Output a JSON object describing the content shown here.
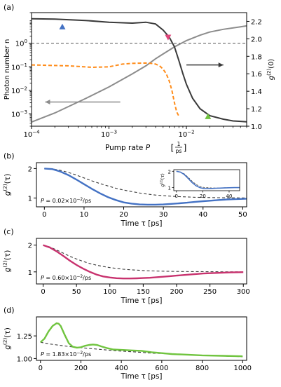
{
  "chart_data": [
    {
      "panel": "(a)",
      "type": "line",
      "xlabel_main": "Pump rate",
      "xlabel_sym": "P",
      "xlabel_unit_num": "1",
      "xlabel_unit_den": "ps",
      "ylabel_left": "Photon number n",
      "ylabel_right_sym": "g",
      "ylabel_right_sup": "(2)",
      "ylabel_right_arg": "(0)",
      "x_scale": "log",
      "y_scale_left": "log",
      "xlim": [
        0.0001,
        0.06
      ],
      "ylim_left": [
        0.0003,
        20
      ],
      "ylim_right": [
        1.0,
        2.3
      ],
      "x_ticks": [
        {
          "v": 0.0001,
          "base": "10",
          "exp": "−4"
        },
        {
          "v": 0.001,
          "base": "10",
          "exp": "−3"
        },
        {
          "v": 0.01,
          "base": "10",
          "exp": "−2"
        }
      ],
      "y_ticks_left": [
        {
          "v": 0.001,
          "base": "10",
          "exp": "−3"
        },
        {
          "v": 0.01,
          "base": "10",
          "exp": "−2"
        },
        {
          "v": 0.1,
          "base": "10",
          "exp": "−1"
        },
        {
          "v": 1,
          "base": "10",
          "exp": "0"
        }
      ],
      "y_ticks_right": [
        "1.0",
        "1.2",
        "1.4",
        "1.6",
        "1.8",
        "2.0",
        "2.2"
      ],
      "hline_left": 1.0,
      "series": [
        {
          "axis": "left",
          "color": "#8c8c8c",
          "style": "solid",
          "x": [
            0.0001,
            0.0002,
            0.0005,
            0.001,
            0.002,
            0.003,
            0.004,
            0.005,
            0.007,
            0.01,
            0.015,
            0.02,
            0.03,
            0.05,
            0.06
          ],
          "y": [
            0.00045,
            0.0011,
            0.0045,
            0.014,
            0.05,
            0.11,
            0.22,
            0.35,
            0.7,
            1.3,
            2.2,
            3.0,
            3.9,
            5.0,
            5.5
          ]
        },
        {
          "axis": "right",
          "color": "#3a3a3a",
          "style": "solid",
          "x": [
            0.0001,
            0.0002,
            0.0005,
            0.001,
            0.002,
            0.003,
            0.004,
            0.005,
            0.006,
            0.007,
            0.008,
            0.009,
            0.01,
            0.012,
            0.015,
            0.02,
            0.03,
            0.04,
            0.05,
            0.06
          ],
          "y": [
            2.23,
            2.225,
            2.21,
            2.19,
            2.18,
            2.19,
            2.17,
            2.1,
            2.02,
            1.91,
            1.75,
            1.6,
            1.48,
            1.32,
            1.2,
            1.12,
            1.08,
            1.06,
            1.055,
            1.05
          ]
        },
        {
          "axis": "left",
          "color": "#ff8c1a",
          "style": "dashed",
          "x": [
            0.0001,
            0.0003,
            0.0006,
            0.001,
            0.0015,
            0.002,
            0.0025,
            0.003,
            0.0035,
            0.004,
            0.0045,
            0.005,
            0.0055,
            0.006,
            0.0065,
            0.007,
            0.0075,
            0.008
          ],
          "y": [
            0.12,
            0.11,
            0.095,
            0.1,
            0.13,
            0.14,
            0.143,
            0.145,
            0.14,
            0.13,
            0.11,
            0.08,
            0.05,
            0.025,
            0.01,
            0.003,
            0.0012,
            0.0008
          ]
        }
      ],
      "markers": [
        {
          "shape": "up",
          "color": "#4472c4",
          "x": 0.00025,
          "axis": "left",
          "y": 5.0
        },
        {
          "shape": "down",
          "color": "#e0457b",
          "x": 0.0058,
          "axis": "left",
          "y": 1.8
        },
        {
          "shape": "up",
          "color": "#70c43f",
          "x": 0.019,
          "axis": "right",
          "y": 1.11
        }
      ],
      "arrows": [
        {
          "dir": "left",
          "x_from": 0.0014,
          "x_to": 0.00015,
          "y": 0.0032,
          "color": "#8c8c8c"
        },
        {
          "dir": "right",
          "x_from": 0.01,
          "x_to": 0.03,
          "y": 0.12,
          "color": "#3a3a3a"
        }
      ]
    },
    {
      "panel": "(b)",
      "type": "line",
      "xlabel": "Time τ [ps]",
      "ylabel_sym": "g",
      "ylabel_sup": "(2)",
      "ylabel_arg": "(τ)",
      "xlim": [
        -2,
        51
      ],
      "ylim": [
        0.7,
        2.2
      ],
      "x_ticks": [
        "0",
        "10",
        "20",
        "30",
        "40",
        "50"
      ],
      "y_ticks": [
        "1",
        "2"
      ],
      "annotation": "P = 0.02×10−2/ps",
      "series": [
        {
          "color": "#4472c4",
          "style": "solid",
          "x": [
            0,
            2,
            4,
            6,
            8,
            10,
            12,
            14,
            16,
            18,
            20,
            22,
            24,
            26,
            28,
            30,
            32,
            34,
            36,
            38,
            40,
            42,
            44,
            46,
            48,
            50,
            51
          ],
          "y": [
            2.0,
            1.98,
            1.9,
            1.78,
            1.63,
            1.47,
            1.31,
            1.16,
            1.03,
            0.93,
            0.85,
            0.81,
            0.78,
            0.775,
            0.775,
            0.78,
            0.8,
            0.82,
            0.84,
            0.87,
            0.89,
            0.91,
            0.93,
            0.95,
            0.96,
            0.97,
            0.975
          ]
        },
        {
          "color": "#3a3a3a",
          "style": "dashed",
          "x": [
            0,
            2,
            4,
            6,
            8,
            10,
            12,
            14,
            16,
            18,
            20,
            22,
            24,
            26,
            28,
            30,
            32,
            34,
            36,
            38,
            40,
            42,
            44,
            46,
            48,
            50,
            51
          ],
          "y": [
            2.0,
            1.99,
            1.94,
            1.87,
            1.78,
            1.68,
            1.58,
            1.49,
            1.41,
            1.33,
            1.27,
            1.22,
            1.17,
            1.13,
            1.1,
            1.08,
            1.06,
            1.045,
            1.035,
            1.025,
            1.02,
            1.015,
            1.01,
            1.008,
            1.005,
            1.003,
            1.002
          ]
        }
      ],
      "inset": {
        "xlim": [
          -2,
          48
        ],
        "ylim": [
          0.8,
          2.1
        ],
        "x_ticks": [
          "0",
          "20",
          "40"
        ],
        "y_ticks": [
          "1",
          "2"
        ],
        "ylabel_sym": "g",
        "ylabel_sup": "(2)",
        "ylabel_arg": "(τ)",
        "series": [
          {
            "color": "#4472c4",
            "style": "solid",
            "x": [
              0,
              3,
              6,
              9,
              12,
              15,
              18,
              21,
              24,
              27,
              30,
              33,
              36,
              40,
              44,
              48
            ],
            "y": [
              2.0,
              1.95,
              1.8,
              1.55,
              1.3,
              1.1,
              0.98,
              0.93,
              0.93,
              0.94,
              0.95,
              0.96,
              0.97,
              0.98,
              0.99,
              0.99
            ]
          },
          {
            "color": "#3a3a3a",
            "style": "dashed",
            "x": [
              0,
              3,
              6,
              9,
              12,
              15,
              18,
              21,
              24,
              27,
              30,
              33,
              36,
              40,
              44,
              48
            ],
            "y": [
              2.0,
              1.96,
              1.84,
              1.62,
              1.38,
              1.18,
              1.06,
              1.0,
              0.98,
              0.97,
              0.97,
              0.97,
              0.98,
              0.98,
              0.99,
              0.99
            ]
          }
        ]
      }
    },
    {
      "panel": "(c)",
      "type": "line",
      "xlabel": "Time τ [ps]",
      "ylabel_sym": "g",
      "ylabel_sup": "(2)",
      "ylabel_arg": "(τ)",
      "xlim": [
        -10,
        305
      ],
      "ylim": [
        0.55,
        2.25
      ],
      "x_ticks": [
        "0",
        "50",
        "100",
        "150",
        "200",
        "250",
        "300"
      ],
      "y_ticks": [
        "1",
        "2"
      ],
      "annotation": "P = 0.60×10−2/ps",
      "series": [
        {
          "color": "#c8326e",
          "style": "solid",
          "x": [
            0,
            10,
            20,
            30,
            40,
            50,
            60,
            70,
            80,
            90,
            100,
            110,
            120,
            130,
            140,
            150,
            160,
            170,
            180,
            190,
            200,
            220,
            240,
            260,
            280,
            300
          ],
          "y": [
            2.0,
            1.91,
            1.77,
            1.6,
            1.42,
            1.26,
            1.12,
            1.0,
            0.9,
            0.83,
            0.79,
            0.765,
            0.755,
            0.755,
            0.76,
            0.77,
            0.78,
            0.8,
            0.82,
            0.84,
            0.86,
            0.9,
            0.94,
            0.96,
            0.98,
            0.99
          ]
        },
        {
          "color": "#3a3a3a",
          "style": "dashed",
          "x": [
            0,
            10,
            20,
            30,
            40,
            50,
            60,
            70,
            80,
            90,
            100,
            110,
            120,
            130,
            140,
            150,
            160,
            170,
            180,
            190,
            200,
            220,
            240,
            260,
            280,
            300
          ],
          "y": [
            2.0,
            1.93,
            1.82,
            1.7,
            1.58,
            1.48,
            1.39,
            1.31,
            1.25,
            1.2,
            1.16,
            1.13,
            1.1,
            1.08,
            1.065,
            1.05,
            1.04,
            1.03,
            1.025,
            1.02,
            1.015,
            1.01,
            1.007,
            1.005,
            1.003,
            1.002
          ]
        }
      ]
    },
    {
      "panel": "(d)",
      "type": "line",
      "xlabel": "Time τ [ps]",
      "ylabel_sym": "g",
      "ylabel_sup": "(2)",
      "ylabel_arg": "(τ)",
      "xlim": [
        -20,
        1020
      ],
      "ylim": [
        0.98,
        1.46
      ],
      "x_ticks": [
        "0",
        "200",
        "400",
        "600",
        "800",
        "1000"
      ],
      "y_ticks": [
        "1.00",
        "1.25"
      ],
      "annotation": "P = 1.83×10−2/ps",
      "series": [
        {
          "color": "#70c43f",
          "style": "solid",
          "x": [
            0,
            20,
            40,
            60,
            80,
            90,
            100,
            120,
            140,
            160,
            180,
            200,
            220,
            240,
            260,
            280,
            300,
            330,
            360,
            400,
            450,
            500,
            550,
            600,
            650,
            700,
            800,
            900,
            1000
          ],
          "y": [
            1.18,
            1.22,
            1.3,
            1.36,
            1.39,
            1.385,
            1.36,
            1.26,
            1.17,
            1.13,
            1.12,
            1.125,
            1.14,
            1.15,
            1.155,
            1.15,
            1.135,
            1.115,
            1.1,
            1.095,
            1.09,
            1.085,
            1.07,
            1.06,
            1.05,
            1.045,
            1.035,
            1.03,
            1.025
          ]
        },
        {
          "color": "#3a3a3a",
          "style": "dashed",
          "x": [
            0,
            50,
            100,
            150,
            200,
            250,
            300,
            350,
            400,
            450,
            500,
            550,
            600,
            650,
            700,
            800,
            900,
            1000
          ],
          "y": [
            1.18,
            1.16,
            1.145,
            1.13,
            1.12,
            1.11,
            1.1,
            1.09,
            1.082,
            1.075,
            1.068,
            1.06,
            1.055,
            1.05,
            1.045,
            1.035,
            1.027,
            1.02
          ]
        }
      ]
    }
  ]
}
